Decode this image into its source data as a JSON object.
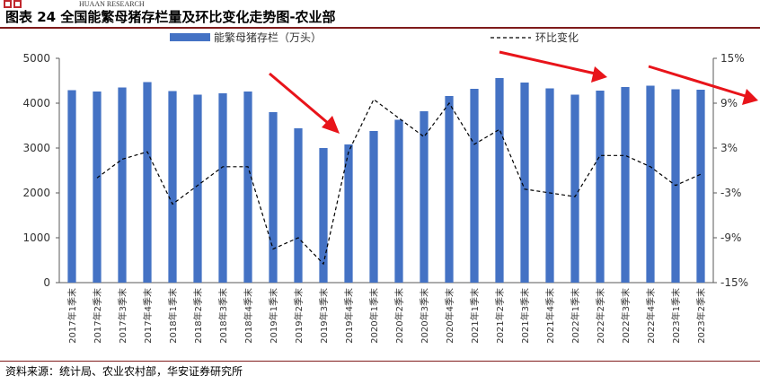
{
  "header": {
    "logo_text": "HUAAN RESEARCH",
    "title": "图表 24 全国能繁母猪存栏量及环比变化走势图-农业部"
  },
  "footer": {
    "source": "资料来源：统计局、农业农村部，华安证券研究所"
  },
  "colors": {
    "bar": "#4472C4",
    "line": "#000000",
    "arrow": "#E8141A",
    "rule": "#7F1B1B"
  },
  "chart_data": {
    "type": "bar",
    "categories": [
      "2017年1季末",
      "2017年2季末",
      "2017年3季末",
      "2017年4季末",
      "2018年1季末",
      "2018年2季末",
      "2018年3季末",
      "2018年4季末",
      "2019年1季末",
      "2019年2季末",
      "2019年3季末",
      "2019年4季末",
      "2020年1季末",
      "2020年2季末",
      "2020年3季末",
      "2020年4季末",
      "2021年1季末",
      "2021年2季末",
      "2021年3季末",
      "2021年4季末",
      "2022年1季末",
      "2022年2季末",
      "2022年3季末",
      "2022年4季末",
      "2023年1季末",
      "2023年2季末"
    ],
    "series": [
      {
        "name": "能繁母猪存栏（万头）",
        "type": "bar",
        "axis": "left",
        "values": [
          4290,
          4260,
          4350,
          4470,
          4270,
          4190,
          4220,
          4260,
          3800,
          3440,
          3000,
          3080,
          3380,
          3630,
          3820,
          4160,
          4320,
          4560,
          4460,
          4330,
          4190,
          4280,
          4360,
          4390,
          4310,
          4300
        ]
      },
      {
        "name": "环比变化",
        "type": "line",
        "axis": "right",
        "style": "dashed",
        "values": [
          null,
          -1.0,
          1.5,
          2.5,
          -4.5,
          -2.0,
          0.5,
          0.5,
          -10.5,
          -9.0,
          -12.5,
          2.5,
          9.5,
          7.0,
          4.5,
          9.0,
          3.5,
          5.5,
          -2.5,
          -3.0,
          -3.5,
          2.0,
          2.0,
          0.5,
          -2.0,
          -0.5
        ]
      }
    ],
    "ylim_left": [
      0,
      5000
    ],
    "yticks_left": [
      "0",
      "1000",
      "2000",
      "3000",
      "4000",
      "5000"
    ],
    "ylim_right": [
      -15,
      15
    ],
    "yticks_right": [
      "-15%",
      "-9%",
      "-3%",
      "3%",
      "9%",
      "15%"
    ],
    "legend_position": "top",
    "grid": false
  }
}
